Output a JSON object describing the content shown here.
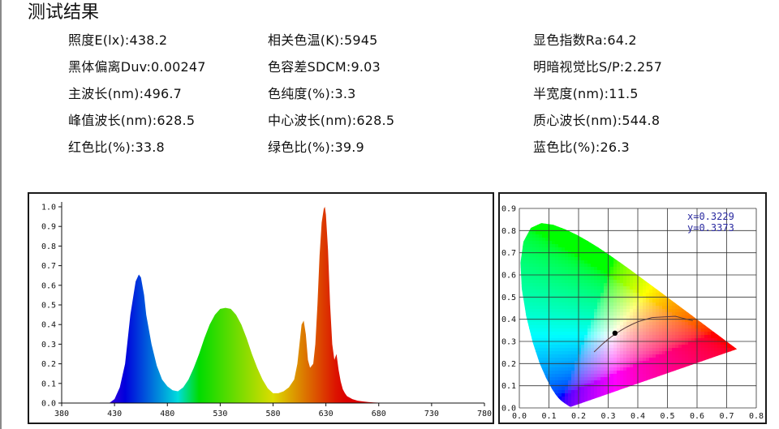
{
  "page": {
    "title": "测试结果"
  },
  "metrics": [
    [
      "照度E(lx):438.2",
      "相关色温(K):5945",
      "显色指数Ra:64.2"
    ],
    [
      "黑体偏离Duv:0.00247",
      "色容差SDCM:9.03",
      "明暗视觉比S/P:2.257"
    ],
    [
      "主波长(nm):496.7",
      "色纯度(%):3.3",
      "半宽度(nm):11.5"
    ],
    [
      "峰值波长(nm):628.5",
      "中心波长(nm):628.5",
      "质心波长(nm):544.8"
    ],
    [
      "红色比(%):33.8",
      "绿色比(%):39.9",
      "蓝色比(%):26.3"
    ]
  ],
  "chart_data": [
    {
      "type": "area",
      "title": "",
      "xlabel": "",
      "ylabel": "",
      "xlim": [
        380,
        780
      ],
      "ylim": [
        0,
        1.0
      ],
      "xticks": [
        380,
        430,
        480,
        530,
        580,
        630,
        680,
        730,
        780
      ],
      "xtick_labels": [
        "380",
        "430",
        "480",
        "530",
        "580",
        "630",
        "680",
        "730",
        "780"
      ],
      "yticks": [
        0,
        0.1,
        0.2,
        0.3,
        0.4,
        0.5,
        0.6,
        0.7,
        0.8,
        0.9,
        1.0
      ],
      "ytick_labels": [
        "0.0",
        "0.1",
        "0.2",
        "0.3",
        "0.4",
        "0.5",
        "0.6",
        "0.7",
        "0.8",
        "0.9",
        "1.0"
      ],
      "fill": "wavelength-color gradient",
      "x": [
        425,
        430,
        435,
        440,
        445,
        450,
        453,
        455,
        458,
        460,
        465,
        470,
        475,
        480,
        485,
        490,
        495,
        500,
        505,
        510,
        515,
        520,
        525,
        530,
        535,
        540,
        545,
        550,
        555,
        560,
        565,
        570,
        575,
        580,
        585,
        590,
        595,
        600,
        603,
        605,
        607,
        609,
        611,
        613,
        615,
        618,
        620,
        622,
        624,
        626,
        628,
        629,
        630,
        632,
        634,
        636,
        638,
        640,
        642,
        644,
        646,
        648,
        650,
        655,
        660,
        665,
        670,
        675,
        680,
        690,
        700,
        710
      ],
      "y": [
        0.0,
        0.02,
        0.08,
        0.2,
        0.45,
        0.62,
        0.655,
        0.64,
        0.55,
        0.45,
        0.3,
        0.19,
        0.12,
        0.085,
        0.065,
        0.06,
        0.08,
        0.12,
        0.18,
        0.25,
        0.33,
        0.4,
        0.45,
        0.48,
        0.485,
        0.48,
        0.45,
        0.4,
        0.33,
        0.25,
        0.18,
        0.12,
        0.075,
        0.05,
        0.05,
        0.06,
        0.08,
        0.12,
        0.2,
        0.3,
        0.4,
        0.42,
        0.35,
        0.22,
        0.18,
        0.2,
        0.3,
        0.5,
        0.75,
        0.92,
        0.99,
        1.0,
        0.96,
        0.78,
        0.5,
        0.3,
        0.22,
        0.25,
        0.17,
        0.11,
        0.07,
        0.05,
        0.035,
        0.02,
        0.012,
        0.008,
        0.005,
        0.003,
        0.002,
        0.001,
        0.0,
        0.0
      ]
    },
    {
      "type": "scatter",
      "title": "",
      "xlabel": "",
      "ylabel": "",
      "xlim": [
        0,
        0.8
      ],
      "ylim": [
        0,
        0.9
      ],
      "xticks": [
        0,
        0.1,
        0.2,
        0.3,
        0.4,
        0.5,
        0.6,
        0.7,
        0.8
      ],
      "xtick_labels": [
        "0.0",
        "0.1",
        "0.2",
        "0.3",
        "0.4",
        "0.5",
        "0.6",
        "0.7",
        "0.8"
      ],
      "yticks": [
        0,
        0.1,
        0.2,
        0.3,
        0.4,
        0.5,
        0.6,
        0.7,
        0.8,
        0.9
      ],
      "ytick_labels": [
        "0.0",
        "0.1",
        "0.2",
        "0.3",
        "0.4",
        "0.5",
        "0.6",
        "0.7",
        "0.8",
        "0.9"
      ],
      "grid": true,
      "point": {
        "x": 0.3229,
        "y": 0.3373
      },
      "annotations": [
        "x=0.3229",
        "y=0.3373"
      ],
      "locus": [
        [
          0.1741,
          0.005
        ],
        [
          0.1738,
          0.0049
        ],
        [
          0.1736,
          0.0049
        ],
        [
          0.1733,
          0.0048
        ],
        [
          0.173,
          0.0048
        ],
        [
          0.1726,
          0.0048
        ],
        [
          0.1721,
          0.0048
        ],
        [
          0.1714,
          0.0051
        ],
        [
          0.1703,
          0.0058
        ],
        [
          0.1689,
          0.0069
        ],
        [
          0.1669,
          0.0086
        ],
        [
          0.1644,
          0.0109
        ],
        [
          0.1611,
          0.0138
        ],
        [
          0.1566,
          0.0177
        ],
        [
          0.151,
          0.0227
        ],
        [
          0.144,
          0.0297
        ],
        [
          0.1355,
          0.0399
        ],
        [
          0.1241,
          0.0578
        ],
        [
          0.1096,
          0.0868
        ],
        [
          0.0913,
          0.1327
        ],
        [
          0.0687,
          0.2007
        ],
        [
          0.0454,
          0.295
        ],
        [
          0.0235,
          0.4127
        ],
        [
          0.0082,
          0.5384
        ],
        [
          0.0039,
          0.6548
        ],
        [
          0.0139,
          0.7502
        ],
        [
          0.0389,
          0.812
        ],
        [
          0.0743,
          0.8338
        ],
        [
          0.1142,
          0.8262
        ],
        [
          0.1547,
          0.8059
        ],
        [
          0.1929,
          0.7816
        ],
        [
          0.2296,
          0.7543
        ],
        [
          0.2658,
          0.7243
        ],
        [
          0.3016,
          0.6923
        ],
        [
          0.3373,
          0.6589
        ],
        [
          0.3731,
          0.6245
        ],
        [
          0.4087,
          0.5896
        ],
        [
          0.4441,
          0.5547
        ],
        [
          0.4788,
          0.5202
        ],
        [
          0.5125,
          0.4866
        ],
        [
          0.5448,
          0.4544
        ],
        [
          0.5752,
          0.4242
        ],
        [
          0.6029,
          0.3965
        ],
        [
          0.627,
          0.3725
        ],
        [
          0.6482,
          0.3514
        ],
        [
          0.6658,
          0.334
        ],
        [
          0.6801,
          0.3197
        ],
        [
          0.6915,
          0.3083
        ],
        [
          0.7006,
          0.2993
        ],
        [
          0.7079,
          0.292
        ],
        [
          0.714,
          0.2859
        ],
        [
          0.719,
          0.2809
        ],
        [
          0.723,
          0.277
        ],
        [
          0.726,
          0.274
        ],
        [
          0.7283,
          0.2717
        ],
        [
          0.73,
          0.27
        ],
        [
          0.7311,
          0.2689
        ],
        [
          0.732,
          0.268
        ],
        [
          0.7327,
          0.2673
        ],
        [
          0.7334,
          0.2666
        ],
        [
          0.734,
          0.266
        ],
        [
          0.7344,
          0.2656
        ],
        [
          0.7346,
          0.2654
        ],
        [
          0.7347,
          0.2653
        ]
      ],
      "planckian_locus": [
        [
          0.5857,
          0.3931
        ],
        [
          0.5266,
          0.4133
        ],
        [
          0.4476,
          0.4074
        ],
        [
          0.4021,
          0.3897
        ],
        [
          0.3805,
          0.3768
        ],
        [
          0.3608,
          0.3636
        ],
        [
          0.3451,
          0.3516
        ],
        [
          0.3221,
          0.3318
        ],
        [
          0.3064,
          0.3166
        ],
        [
          0.2952,
          0.3048
        ],
        [
          0.2807,
          0.2883
        ],
        [
          0.2637,
          0.2668
        ],
        [
          0.2523,
          0.2526
        ]
      ]
    }
  ]
}
